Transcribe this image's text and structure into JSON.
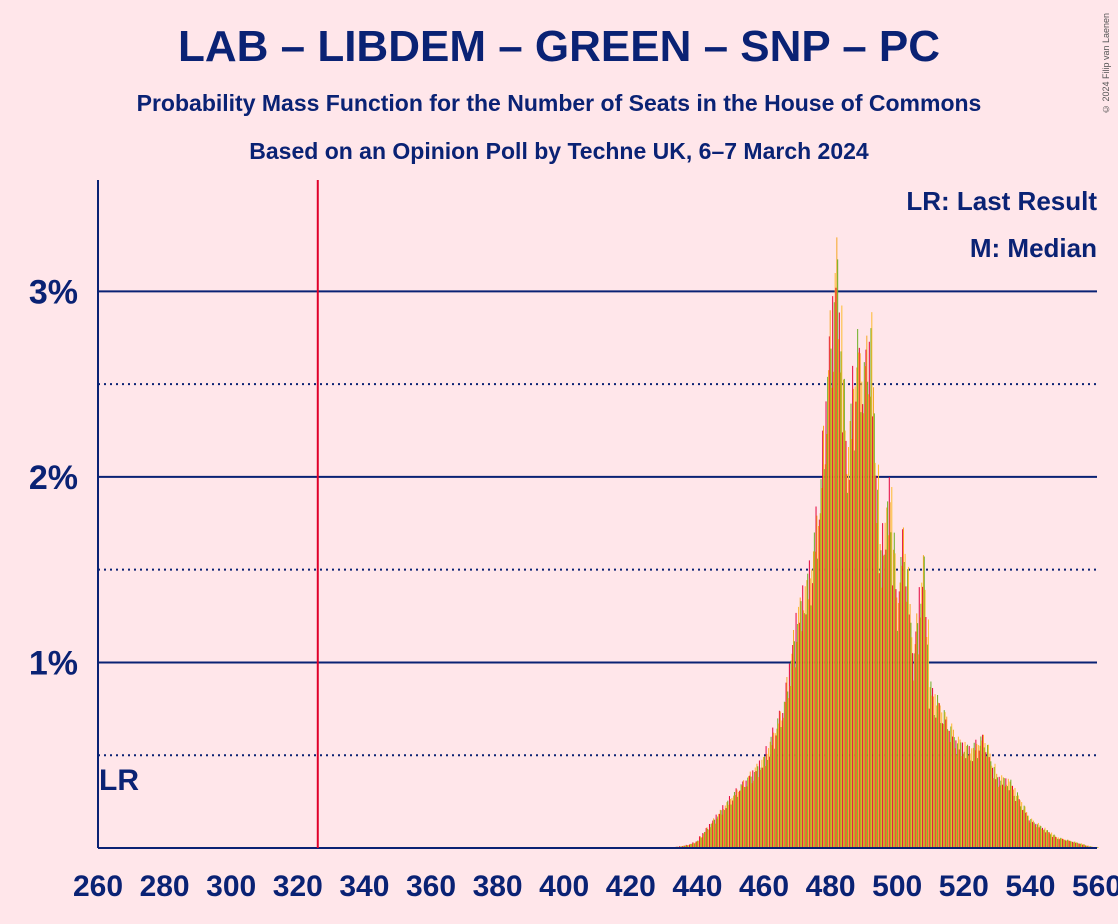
{
  "title": "LAB – LIBDEM – GREEN – SNP – PC",
  "subtitle1": "Probability Mass Function for the Number of Seats in the House of Commons",
  "subtitle2": "Based on an Opinion Poll by Techne UK, 6–7 March 2024",
  "copyright": "© 2024 Filip van Laenen",
  "colors": {
    "background": "#ffe6ea",
    "text": "#0a2274",
    "lr_line": "#e0002a",
    "bar_red": "#e4003b",
    "bar_orange": "#f5a623",
    "bar_green": "#6ab023",
    "bar_yellow": "#fdbb30"
  },
  "chart_data": {
    "type": "bar",
    "xlim": [
      260,
      560
    ],
    "ylim": [
      0,
      3.6
    ],
    "x_ticks": [
      260,
      280,
      300,
      320,
      340,
      360,
      380,
      400,
      420,
      440,
      460,
      480,
      500,
      520,
      540,
      560
    ],
    "x_tick_labels": [
      "260",
      "280",
      "300",
      "320",
      "340",
      "360",
      "380",
      "400",
      "420",
      "440",
      "460",
      "480",
      "500",
      "520",
      "540",
      "560"
    ],
    "y_ticks": [
      1,
      2,
      3
    ],
    "y_tick_labels": [
      "1%",
      "2%",
      "3%"
    ],
    "y_minor": [
      0.5,
      1.5,
      2.5
    ],
    "last_result": 326,
    "last_result_label": "LR",
    "legend": [
      "LR: Last Result",
      "M: Median"
    ],
    "peaks": [
      {
        "center": 440,
        "value": 0.04
      },
      {
        "center": 450,
        "value": 0.28
      },
      {
        "center": 460,
        "value": 0.5
      },
      {
        "center": 466,
        "value": 0.8
      },
      {
        "center": 470,
        "value": 1.3
      },
      {
        "center": 474,
        "value": 1.55
      },
      {
        "center": 477,
        "value": 2.0
      },
      {
        "center": 480,
        "value": 2.9
      },
      {
        "center": 482,
        "value": 3.3
      },
      {
        "center": 485,
        "value": 2.2
      },
      {
        "center": 488,
        "value": 2.8
      },
      {
        "center": 490,
        "value": 2.65
      },
      {
        "center": 492,
        "value": 2.9
      },
      {
        "center": 495,
        "value": 1.65
      },
      {
        "center": 498,
        "value": 2.0
      },
      {
        "center": 500,
        "value": 1.4
      },
      {
        "center": 502,
        "value": 1.75
      },
      {
        "center": 505,
        "value": 1.1
      },
      {
        "center": 508,
        "value": 1.6
      },
      {
        "center": 510,
        "value": 0.9
      },
      {
        "center": 514,
        "value": 0.75
      },
      {
        "center": 518,
        "value": 0.6
      },
      {
        "center": 522,
        "value": 0.55
      },
      {
        "center": 526,
        "value": 0.62
      },
      {
        "center": 530,
        "value": 0.4
      },
      {
        "center": 534,
        "value": 0.37
      },
      {
        "center": 540,
        "value": 0.16
      },
      {
        "center": 548,
        "value": 0.06
      },
      {
        "center": 556,
        "value": 0.02
      }
    ]
  }
}
